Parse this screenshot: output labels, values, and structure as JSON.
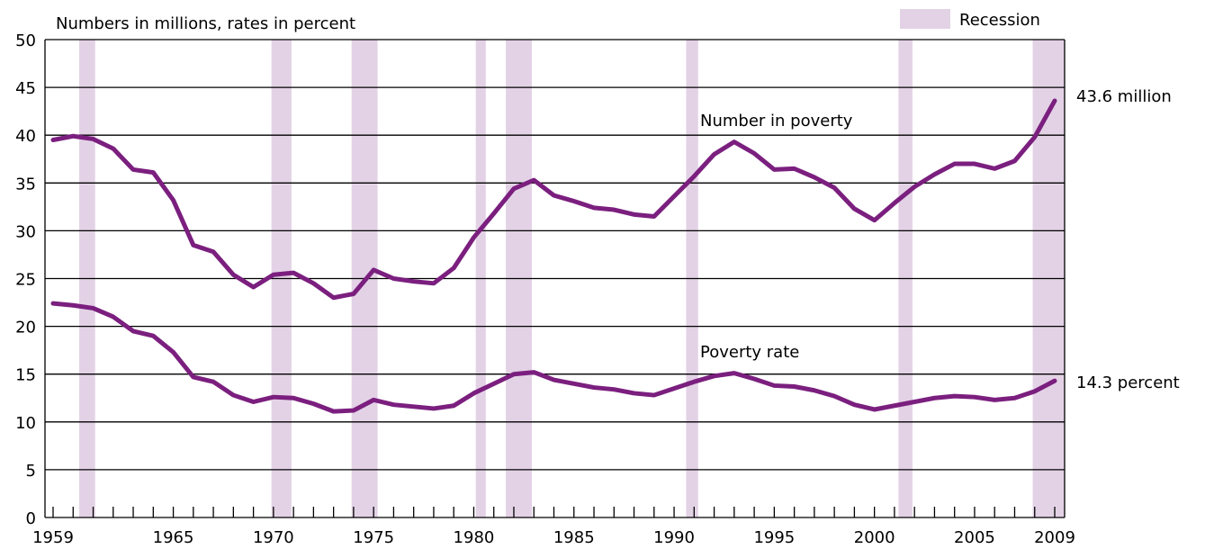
{
  "chart_data": {
    "type": "line",
    "title": "Numbers in millions, rates in percent",
    "legend": {
      "label": "Recession",
      "color": "#e3d2e6",
      "placement": "top-right"
    },
    "x": [
      1959,
      1960,
      1961,
      1962,
      1963,
      1964,
      1965,
      1966,
      1967,
      1968,
      1969,
      1970,
      1971,
      1972,
      1973,
      1974,
      1975,
      1976,
      1977,
      1978,
      1979,
      1980,
      1981,
      1982,
      1983,
      1984,
      1985,
      1986,
      1987,
      1988,
      1989,
      1990,
      1991,
      1992,
      1993,
      1994,
      1995,
      1996,
      1997,
      1998,
      1999,
      2000,
      2001,
      2002,
      2003,
      2004,
      2005,
      2006,
      2007,
      2008,
      2009
    ],
    "x_tick_labels": [
      "1959",
      "1965",
      "1970",
      "1975",
      "1980",
      "1985",
      "1990",
      "1995",
      "2000",
      "2005",
      "2009"
    ],
    "xlim": [
      1959,
      2009
    ],
    "ylim": [
      0,
      50
    ],
    "y_ticks": [
      0,
      5,
      10,
      15,
      20,
      25,
      30,
      35,
      40,
      45,
      50
    ],
    "grid": "horizontal",
    "line_color": "#7b1f7f",
    "recessions": [
      {
        "start": 1960.3,
        "end": 1961.1
      },
      {
        "start": 1969.9,
        "end": 1970.9
      },
      {
        "start": 1973.9,
        "end": 1975.2
      },
      {
        "start": 1980.1,
        "end": 1980.6
      },
      {
        "start": 1981.6,
        "end": 1982.9
      },
      {
        "start": 1990.6,
        "end": 1991.2
      },
      {
        "start": 2001.2,
        "end": 2001.9
      },
      {
        "start": 2007.9,
        "end": 2009.5
      }
    ],
    "series": [
      {
        "name": "Number in poverty",
        "end_label": "43.6 million",
        "values": [
          39.5,
          39.9,
          39.6,
          38.6,
          36.4,
          36.1,
          33.2,
          28.5,
          27.8,
          25.4,
          24.1,
          25.4,
          25.6,
          24.5,
          23.0,
          23.4,
          25.9,
          25.0,
          24.7,
          24.5,
          26.1,
          29.3,
          31.8,
          34.4,
          35.3,
          33.7,
          33.1,
          32.4,
          32.2,
          31.7,
          31.5,
          33.6,
          35.7,
          38.0,
          39.3,
          38.1,
          36.4,
          36.5,
          35.6,
          34.5,
          32.3,
          31.1,
          32.9,
          34.6,
          35.9,
          37.0,
          37.0,
          36.5,
          37.3,
          39.8,
          43.6
        ]
      },
      {
        "name": "Poverty rate",
        "end_label": "14.3 percent",
        "values": [
          22.4,
          22.2,
          21.9,
          21.0,
          19.5,
          19.0,
          17.3,
          14.7,
          14.2,
          12.8,
          12.1,
          12.6,
          12.5,
          11.9,
          11.1,
          11.2,
          12.3,
          11.8,
          11.6,
          11.4,
          11.7,
          13.0,
          14.0,
          15.0,
          15.2,
          14.4,
          14.0,
          13.6,
          13.4,
          13.0,
          12.8,
          13.5,
          14.2,
          14.8,
          15.1,
          14.5,
          13.8,
          13.7,
          13.3,
          12.7,
          11.8,
          11.3,
          11.7,
          12.1,
          12.5,
          12.7,
          12.6,
          12.3,
          12.5,
          13.2,
          14.3
        ]
      }
    ]
  }
}
